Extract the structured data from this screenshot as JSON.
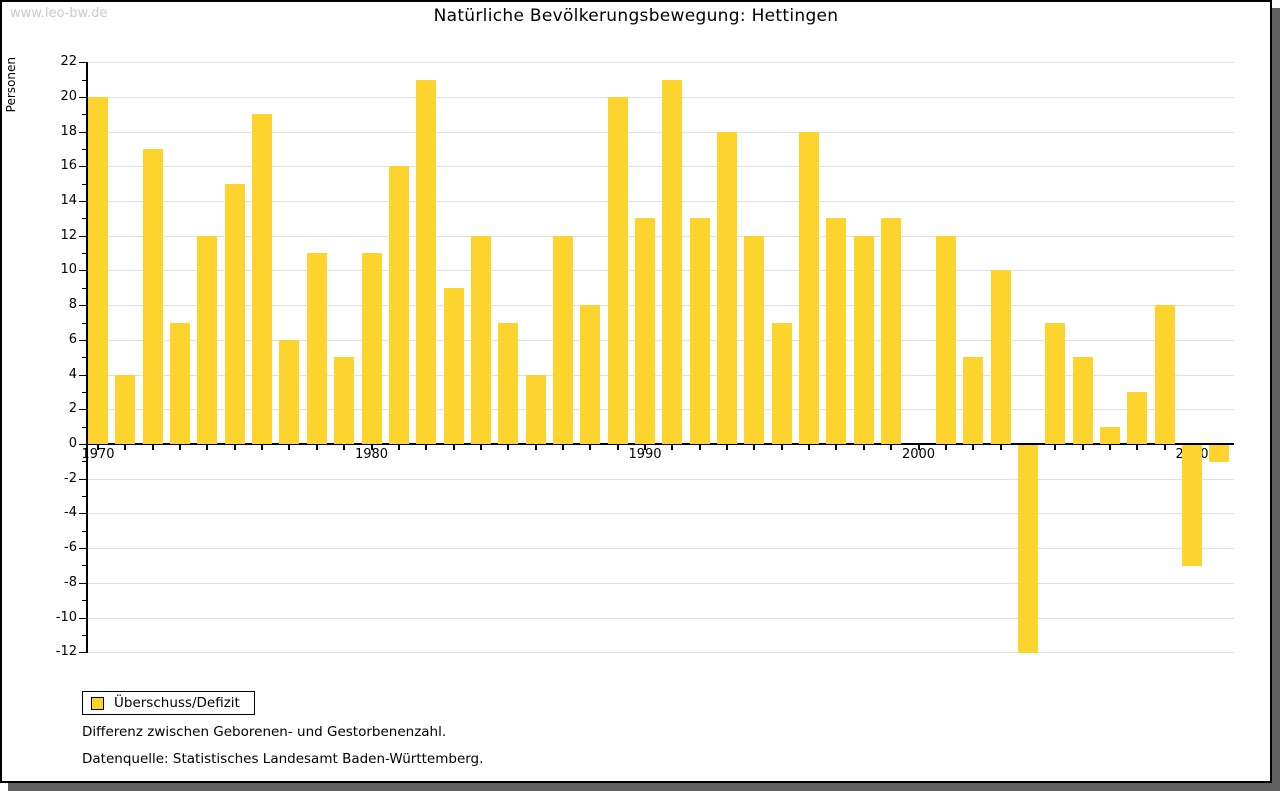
{
  "watermark": "www.leo-bw.de",
  "header": {
    "title": "Natürliche Bevölkerungsbewegung: Hettingen"
  },
  "legend": {
    "label": "Überschuss/Defizit"
  },
  "captions": {
    "line1": "Differenz zwischen Geborenen- und Gestorbenenzahl.",
    "line2": "Datenquelle: Statistisches Landesamt Baden-Württemberg."
  },
  "colors": {
    "bar": "#fcd42d",
    "grid": "#e0e0e0",
    "axis": "#000000",
    "shadow": "#606060",
    "watermark": "#c9c9c9"
  },
  "chart_data": {
    "type": "bar",
    "title": "Natürliche Bevölkerungsbewegung: Hettingen",
    "xlabel": "",
    "ylabel": "Personen",
    "series_name": "Überschuss/Defizit",
    "x": [
      1970,
      1971,
      1972,
      1973,
      1974,
      1975,
      1976,
      1977,
      1978,
      1979,
      1980,
      1981,
      1982,
      1983,
      1984,
      1985,
      1986,
      1987,
      1988,
      1989,
      1990,
      1991,
      1992,
      1993,
      1994,
      1995,
      1996,
      1997,
      1998,
      1999,
      2000,
      2001,
      2002,
      2003,
      2004,
      2005,
      2006,
      2007,
      2008,
      2009,
      2010,
      2011
    ],
    "values": [
      20,
      4,
      17,
      7,
      12,
      15,
      19,
      6,
      11,
      5,
      11,
      16,
      21,
      9,
      12,
      7,
      4,
      12,
      8,
      20,
      13,
      21,
      13,
      18,
      12,
      7,
      18,
      13,
      12,
      13,
      0,
      12,
      5,
      10,
      -12,
      7,
      5,
      1,
      3,
      8,
      -7,
      -1
    ],
    "ylim": [
      -12,
      22
    ],
    "ytick_major_step": 2,
    "ytick_minor_step": 1,
    "xticks_labeled": [
      1970,
      1980,
      1990,
      2000,
      2010
    ],
    "grid": true,
    "legend_position": "bottom-left"
  }
}
